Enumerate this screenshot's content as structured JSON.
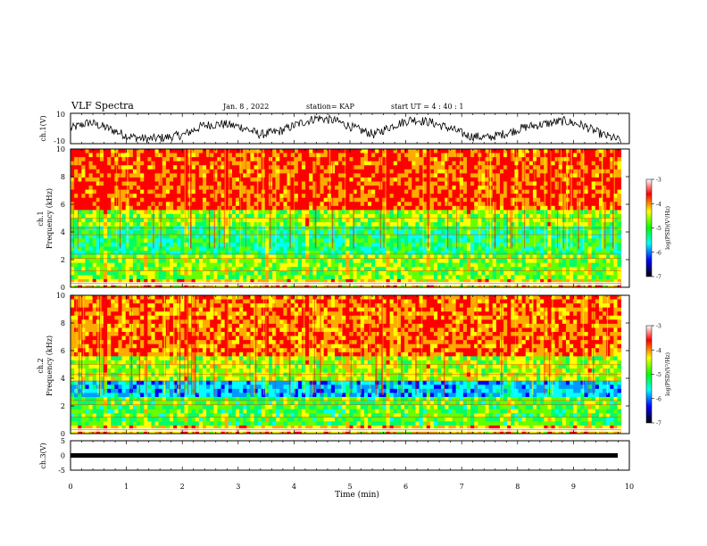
{
  "header": {
    "title": "VLF Spectra",
    "date": "Jan. 8 , 2022",
    "station": "station= KAP",
    "start": "start UT =  4 : 40 : 1"
  },
  "colorbar": {
    "label": "log(PSD)(V²/Hz)",
    "ticks": [
      "-3",
      "-4",
      "-5",
      "-6",
      "-7"
    ],
    "stops": [
      "#ffffff",
      "#ff0000",
      "#ffff00",
      "#00ff00",
      "#00ffff",
      "#0000ff",
      "#000000"
    ]
  },
  "chart_data": [
    {
      "type": "line",
      "name": "ch1-waveform",
      "ylabel": "ch.1(V)",
      "ylim": [
        -10,
        10
      ],
      "yticks": [
        "10",
        "-10"
      ],
      "trend": [
        0,
        4,
        0,
        -5,
        -7,
        -6,
        -4,
        2,
        3,
        1,
        -4,
        -2,
        3,
        7,
        5,
        0,
        -4,
        2,
        6,
        4,
        0,
        -5,
        -6,
        -3,
        1,
        3,
        5,
        2,
        -4,
        -8
      ],
      "xlim": [
        0,
        10
      ],
      "xmax_data": 9.85
    },
    {
      "type": "heatmap",
      "name": "ch1-spectrogram",
      "ylabel": "ch.1\nFrequency (kHz)",
      "ylim": [
        0,
        10
      ],
      "yticks": [
        "0",
        "2",
        "4",
        "6",
        "8",
        "10"
      ],
      "xlim": [
        0,
        10
      ],
      "xmax_data": 9.85
    },
    {
      "type": "heatmap",
      "name": "ch2-spectrogram",
      "ylabel": "ch.2\nFrequency (kHz)",
      "ylim": [
        0,
        10
      ],
      "yticks": [
        "0",
        "2",
        "4",
        "6",
        "8",
        "10"
      ],
      "xlim": [
        0,
        10
      ],
      "xmax_data": 9.85
    },
    {
      "type": "line",
      "name": "ch3-waveform",
      "ylabel": "ch.3(V)",
      "ylim": [
        -5,
        5
      ],
      "yticks": [
        "5",
        "0",
        "-5"
      ],
      "level": 0,
      "xlim": [
        0,
        10
      ],
      "xmax_data": 9.85
    }
  ],
  "xaxis": {
    "label": "Time (min)",
    "ticks": [
      "0",
      "1",
      "2",
      "3",
      "4",
      "5",
      "6",
      "7",
      "8",
      "9",
      "10"
    ]
  }
}
